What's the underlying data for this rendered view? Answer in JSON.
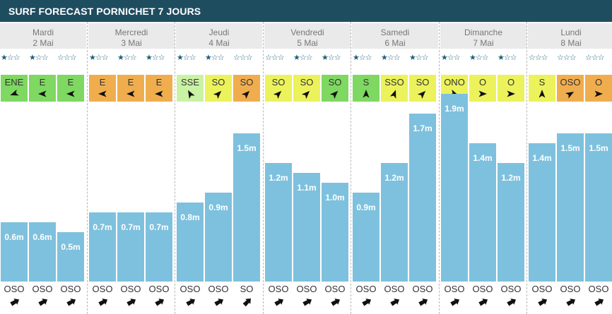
{
  "title": "SURF FORECAST PORNICHET 7 JOURS",
  "colors": {
    "header_bg": "#1f4d60",
    "star": "#1d5f7a",
    "bar": "#7ec1de",
    "wind_green": "#7ed861",
    "wind_yellow": "#ecf25b",
    "wind_orange": "#f0ad4e",
    "wind_lightgreen": "#c9f2a4"
  },
  "days": [
    {
      "name": "Mardi",
      "date": "2 Mai",
      "slots": [
        {
          "stars": "★☆☆",
          "wind": {
            "dir": "ENE",
            "color": "#7ed861",
            "angle": 250
          },
          "height": "0.6m",
          "height_value": 0.6,
          "swell": {
            "dir": "OSO",
            "angle": 60
          }
        },
        {
          "stars": "★☆☆",
          "wind": {
            "dir": "E",
            "color": "#7ed861",
            "angle": 270
          },
          "height": "0.6m",
          "height_value": 0.6,
          "swell": {
            "dir": "OSO",
            "angle": 60
          }
        },
        {
          "stars": "☆☆☆",
          "wind": {
            "dir": "E",
            "color": "#7ed861",
            "angle": 270
          },
          "height": "0.5m",
          "height_value": 0.5,
          "swell": {
            "dir": "OSO",
            "angle": 60
          }
        }
      ]
    },
    {
      "name": "Mercredi",
      "date": "3 Mai",
      "slots": [
        {
          "stars": "★☆☆",
          "wind": {
            "dir": "E",
            "color": "#f0ad4e",
            "angle": 270
          },
          "height": "0.7m",
          "height_value": 0.7,
          "swell": {
            "dir": "OSO",
            "angle": 60
          }
        },
        {
          "stars": "★☆☆",
          "wind": {
            "dir": "E",
            "color": "#f0ad4e",
            "angle": 270
          },
          "height": "0.7m",
          "height_value": 0.7,
          "swell": {
            "dir": "OSO",
            "angle": 60
          }
        },
        {
          "stars": "★☆☆",
          "wind": {
            "dir": "E",
            "color": "#f0ad4e",
            "angle": 270
          },
          "height": "0.7m",
          "height_value": 0.7,
          "swell": {
            "dir": "OSO",
            "angle": 60
          }
        }
      ]
    },
    {
      "name": "Jeudi",
      "date": "4 Mai",
      "slots": [
        {
          "stars": "★☆☆",
          "wind": {
            "dir": "SSE",
            "color": "#c9f2a4",
            "angle": 330
          },
          "height": "0.8m",
          "height_value": 0.8,
          "swell": {
            "dir": "OSO",
            "angle": 60
          }
        },
        {
          "stars": "★☆☆",
          "wind": {
            "dir": "SO",
            "color": "#ecf25b",
            "angle": 45
          },
          "height": "0.9m",
          "height_value": 0.9,
          "swell": {
            "dir": "OSO",
            "angle": 60
          }
        },
        {
          "stars": "☆☆☆",
          "wind": {
            "dir": "SO",
            "color": "#f0ad4e",
            "angle": 45
          },
          "height": "1.5m",
          "height_value": 1.5,
          "swell": {
            "dir": "SO",
            "angle": 45
          }
        }
      ]
    },
    {
      "name": "Vendredi",
      "date": "5 Mai",
      "slots": [
        {
          "stars": "☆☆☆",
          "wind": {
            "dir": "SO",
            "color": "#ecf25b",
            "angle": 45
          },
          "height": "1.2m",
          "height_value": 1.2,
          "swell": {
            "dir": "OSO",
            "angle": 60
          }
        },
        {
          "stars": "★☆☆",
          "wind": {
            "dir": "SO",
            "color": "#ecf25b",
            "angle": 45
          },
          "height": "1.1m",
          "height_value": 1.1,
          "swell": {
            "dir": "OSO",
            "angle": 60
          }
        },
        {
          "stars": "★☆☆",
          "wind": {
            "dir": "SO",
            "color": "#7ed861",
            "angle": 45
          },
          "height": "1.0m",
          "height_value": 1.0,
          "swell": {
            "dir": "OSO",
            "angle": 60
          }
        }
      ]
    },
    {
      "name": "Samedi",
      "date": "6 Mai",
      "slots": [
        {
          "stars": "★☆☆",
          "wind": {
            "dir": "S",
            "color": "#7ed861",
            "angle": 0
          },
          "height": "0.9m",
          "height_value": 0.9,
          "swell": {
            "dir": "OSO",
            "angle": 60
          }
        },
        {
          "stars": "★☆☆",
          "wind": {
            "dir": "SSO",
            "color": "#ecf25b",
            "angle": 20
          },
          "height": "1.2m",
          "height_value": 1.2,
          "swell": {
            "dir": "OSO",
            "angle": 60
          }
        },
        {
          "stars": "★☆☆",
          "wind": {
            "dir": "SO",
            "color": "#ecf25b",
            "angle": 45
          },
          "height": "1.7m",
          "height_value": 1.7,
          "swell": {
            "dir": "OSO",
            "angle": 60
          }
        }
      ]
    },
    {
      "name": "Dimanche",
      "date": "7 Mai",
      "slots": [
        {
          "stars": "★☆☆",
          "wind": {
            "dir": "ONO",
            "color": "#ecf25b",
            "angle": 110
          },
          "height": "1.9m",
          "height_value": 1.9,
          "swell": {
            "dir": "OSO",
            "angle": 60
          }
        },
        {
          "stars": "★☆☆",
          "wind": {
            "dir": "O",
            "color": "#ecf25b",
            "angle": 90
          },
          "height": "1.4m",
          "height_value": 1.4,
          "swell": {
            "dir": "OSO",
            "angle": 60
          }
        },
        {
          "stars": "★☆☆",
          "wind": {
            "dir": "O",
            "color": "#ecf25b",
            "angle": 90
          },
          "height": "1.2m",
          "height_value": 1.2,
          "swell": {
            "dir": "OSO",
            "angle": 60
          }
        }
      ]
    },
    {
      "name": "Lundi",
      "date": "8 Mai",
      "slots": [
        {
          "stars": "☆☆☆",
          "wind": {
            "dir": "S",
            "color": "#ecf25b",
            "angle": 0
          },
          "height": "1.4m",
          "height_value": 1.4,
          "swell": {
            "dir": "OSO",
            "angle": 60
          }
        },
        {
          "stars": "☆☆☆",
          "wind": {
            "dir": "OSO",
            "color": "#f0ad4e",
            "angle": 60
          },
          "height": "1.5m",
          "height_value": 1.5,
          "swell": {
            "dir": "OSO",
            "angle": 60
          }
        },
        {
          "stars": "☆☆☆",
          "wind": {
            "dir": "O",
            "color": "#f0ad4e",
            "angle": 90
          },
          "height": "1.5m",
          "height_value": 1.5,
          "swell": {
            "dir": "OSO",
            "angle": 60
          }
        }
      ]
    }
  ]
}
